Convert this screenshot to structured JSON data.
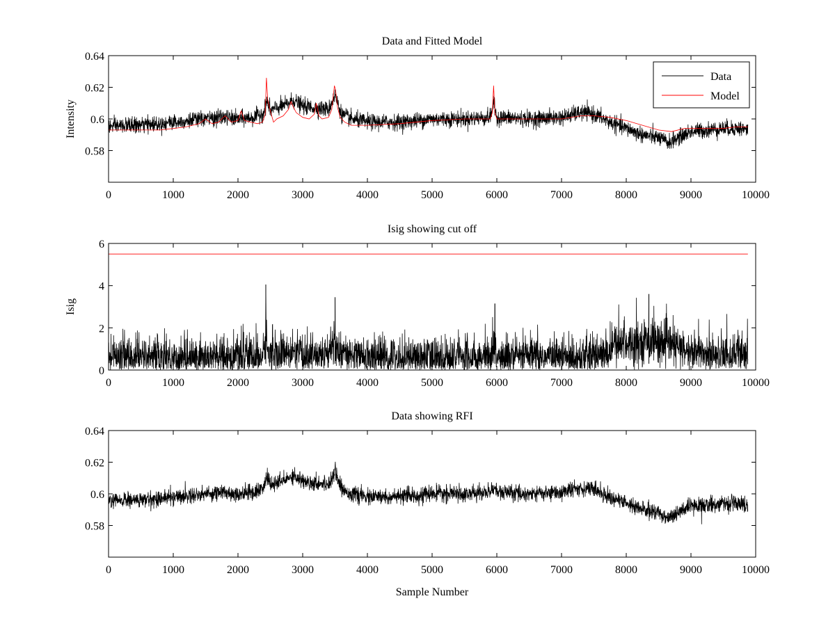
{
  "chart_data": [
    {
      "type": "line",
      "title": "Data and Fitted Model",
      "xlabel": "",
      "ylabel": "Intensity",
      "xlim": [
        0,
        10000
      ],
      "ylim": [
        0.56,
        0.64
      ],
      "xticks": [
        0,
        1000,
        2000,
        3000,
        4000,
        5000,
        6000,
        7000,
        8000,
        9000,
        10000
      ],
      "xtick_labels": [
        "0",
        "1000",
        "2000",
        "3000",
        "4000",
        "5000",
        "6000",
        "7000",
        "8000",
        "9000",
        "10000"
      ],
      "yticks": [
        0.58,
        0.6,
        0.62,
        0.64
      ],
      "ytick_labels": [
        "0.58",
        "0.6",
        "0.62",
        "0.64"
      ],
      "legend": {
        "placement": "top-right",
        "entries": [
          "Data",
          "Model"
        ]
      },
      "grid": false,
      "colors": {
        "Data": "#000000",
        "Model": "#ff0000"
      },
      "series": [
        {
          "name": "Data",
          "x": [
            0,
            250,
            500,
            750,
            1000,
            1250,
            1500,
            1750,
            2000,
            2250,
            2400,
            2450,
            2500,
            2600,
            2750,
            2850,
            3000,
            3200,
            3400,
            3500,
            3600,
            3750,
            4000,
            4500,
            5000,
            5500,
            5900,
            5950,
            6000,
            6500,
            7000,
            7300,
            7500,
            7750,
            8000,
            8250,
            8500,
            8650,
            8800,
            9000,
            9250,
            9500,
            9750,
            9880
          ],
          "y": [
            0.595,
            0.596,
            0.596,
            0.597,
            0.598,
            0.599,
            0.6,
            0.601,
            0.6,
            0.601,
            0.604,
            0.612,
            0.605,
            0.607,
            0.609,
            0.612,
            0.608,
            0.607,
            0.606,
            0.615,
            0.603,
            0.6,
            0.598,
            0.598,
            0.6,
            0.6,
            0.601,
            0.61,
            0.601,
            0.6,
            0.601,
            0.604,
            0.603,
            0.598,
            0.594,
            0.59,
            0.588,
            0.585,
            0.588,
            0.592,
            0.593,
            0.594,
            0.594,
            0.593
          ],
          "noise": 0.0045
        },
        {
          "name": "Model",
          "x": [
            0,
            400,
            800,
            1000,
            1200,
            1400,
            1500,
            1600,
            1700,
            1800,
            1900,
            2000,
            2050,
            2100,
            2200,
            2300,
            2380,
            2420,
            2440,
            2460,
            2500,
            2550,
            2600,
            2700,
            2780,
            2820,
            2850,
            2900,
            3000,
            3100,
            3180,
            3210,
            3250,
            3300,
            3400,
            3450,
            3490,
            3510,
            3540,
            3580,
            3650,
            3750,
            4000,
            4500,
            5000,
            5500,
            5900,
            5930,
            5950,
            5970,
            6000,
            6500,
            7000,
            7300,
            7500,
            7750,
            8000,
            8250,
            8500,
            8700,
            8900,
            9200,
            9500,
            9700,
            9880
          ],
          "y": [
            0.593,
            0.593,
            0.593,
            0.594,
            0.595,
            0.597,
            0.6,
            0.597,
            0.598,
            0.602,
            0.598,
            0.599,
            0.605,
            0.599,
            0.598,
            0.597,
            0.598,
            0.603,
            0.626,
            0.612,
            0.605,
            0.598,
            0.6,
            0.602,
            0.606,
            0.611,
            0.608,
            0.604,
            0.601,
            0.6,
            0.603,
            0.61,
            0.602,
            0.6,
            0.601,
            0.606,
            0.621,
            0.618,
            0.607,
            0.601,
            0.598,
            0.596,
            0.596,
            0.597,
            0.599,
            0.6,
            0.6,
            0.604,
            0.621,
            0.604,
            0.6,
            0.6,
            0.6,
            0.602,
            0.602,
            0.601,
            0.599,
            0.596,
            0.593,
            0.592,
            0.594,
            0.594,
            0.594,
            0.595,
            0.595
          ]
        }
      ]
    },
    {
      "type": "line",
      "title": "Isig showing cut off",
      "xlabel": "",
      "ylabel": "Isig",
      "xlim": [
        0,
        10000
      ],
      "ylim": [
        0,
        6
      ],
      "xticks": [
        0,
        1000,
        2000,
        3000,
        4000,
        5000,
        6000,
        7000,
        8000,
        9000,
        10000
      ],
      "xtick_labels": [
        "0",
        "1000",
        "2000",
        "3000",
        "4000",
        "5000",
        "6000",
        "7000",
        "8000",
        "9000",
        "10000"
      ],
      "yticks": [
        0,
        2,
        4,
        6
      ],
      "ytick_labels": [
        "0",
        "2",
        "4",
        "6"
      ],
      "grid": false,
      "colors": {
        "signal": "#000000",
        "cutoff": "#ff0000"
      },
      "series": [
        {
          "x": [
            0,
            1000,
            2000,
            2400,
            2430,
            2460,
            2600,
            3000,
            3400,
            3500,
            3550,
            4000,
            5000,
            5900,
            5950,
            6000,
            7000,
            7700,
            7800,
            8000,
            8400,
            8700,
            9000,
            9880
          ],
          "y": [
            0.6,
            0.6,
            0.6,
            0.65,
            2.0,
            0.8,
            0.75,
            0.7,
            0.7,
            1.5,
            0.7,
            0.6,
            0.6,
            0.6,
            1.2,
            0.6,
            0.6,
            0.7,
            1.2,
            1.3,
            1.4,
            1.2,
            0.8,
            0.7
          ],
          "spread": 0.9,
          "peaks": [
            {
              "x": 2430,
              "y": 4.05
            },
            {
              "x": 3500,
              "y": 3.45
            },
            {
              "x": 5970,
              "y": 3.15
            },
            {
              "x": 8350,
              "y": 3.6
            }
          ]
        },
        {
          "x": [
            0,
            9880
          ],
          "y": [
            5.5,
            5.5
          ]
        }
      ]
    },
    {
      "type": "line",
      "title": "Data showing RFI",
      "xlabel": "Sample Number",
      "ylabel": "",
      "xlim": [
        0,
        10000
      ],
      "ylim": [
        0.56,
        0.64
      ],
      "xticks": [
        0,
        1000,
        2000,
        3000,
        4000,
        5000,
        6000,
        7000,
        8000,
        9000,
        10000
      ],
      "xtick_labels": [
        "0",
        "1000",
        "2000",
        "3000",
        "4000",
        "5000",
        "6000",
        "7000",
        "8000",
        "9000",
        "10000"
      ],
      "yticks": [
        0.58,
        0.6,
        0.62,
        0.64
      ],
      "ytick_labels": [
        "0.58",
        "0.6",
        "0.62",
        "0.64"
      ],
      "grid": false,
      "colors": {
        "Data": "#000000"
      },
      "series": [
        {
          "x": [
            0,
            250,
            500,
            750,
            1000,
            1250,
            1500,
            1750,
            2000,
            2250,
            2400,
            2450,
            2500,
            2600,
            2750,
            2850,
            3000,
            3200,
            3400,
            3500,
            3600,
            3750,
            4000,
            4500,
            5000,
            5500,
            5900,
            5950,
            6000,
            6500,
            7000,
            7300,
            7500,
            7750,
            8000,
            8250,
            8500,
            8650,
            8800,
            9000,
            9250,
            9500,
            9750,
            9880
          ],
          "y": [
            0.595,
            0.596,
            0.596,
            0.597,
            0.598,
            0.599,
            0.6,
            0.601,
            0.6,
            0.601,
            0.604,
            0.612,
            0.605,
            0.607,
            0.609,
            0.612,
            0.608,
            0.607,
            0.606,
            0.615,
            0.603,
            0.6,
            0.598,
            0.598,
            0.6,
            0.6,
            0.601,
            0.605,
            0.601,
            0.6,
            0.601,
            0.604,
            0.603,
            0.598,
            0.594,
            0.59,
            0.588,
            0.585,
            0.588,
            0.592,
            0.593,
            0.594,
            0.594,
            0.593
          ],
          "noise": 0.0045
        }
      ]
    }
  ]
}
